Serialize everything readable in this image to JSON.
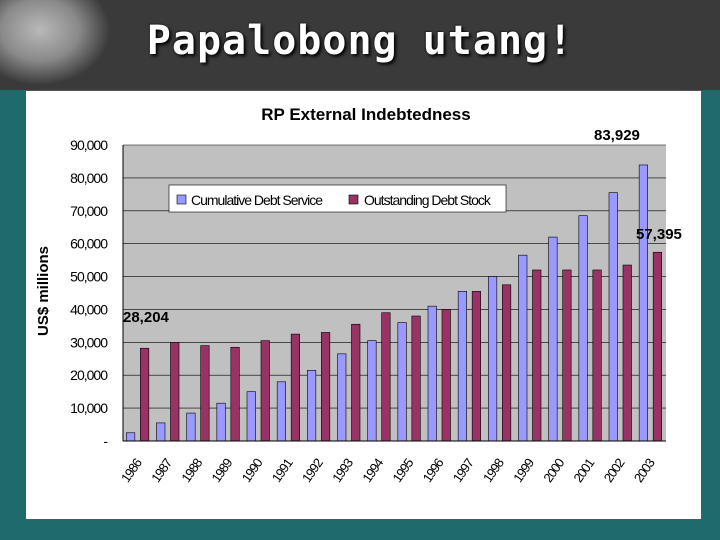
{
  "slide": {
    "title": "Papalobong utang!"
  },
  "chart_data": {
    "type": "bar",
    "title": "RP External Indebtedness",
    "ylabel": "US$ millions",
    "xlabel": "",
    "ylim": [
      0,
      90000
    ],
    "yticks": [
      "-",
      "10,000",
      "20,000",
      "30,000",
      "40,000",
      "50,000",
      "60,000",
      "70,000",
      "80,000",
      "90,000"
    ],
    "categories": [
      "1986",
      "1987",
      "1988",
      "1989",
      "1990",
      "1991",
      "1992",
      "1993",
      "1994",
      "1995",
      "1996",
      "1997",
      "1998",
      "1999",
      "2000",
      "2001",
      "2002",
      "2003"
    ],
    "series": [
      {
        "name": "Cumulative Debt Service",
        "color": "#9999ff",
        "values": [
          2500,
          5500,
          8500,
          11500,
          15000,
          18000,
          21500,
          26500,
          30500,
          36000,
          41000,
          45500,
          50000,
          56500,
          62000,
          68500,
          75500,
          83929
        ]
      },
      {
        "name": "Outstanding Debt Stock",
        "color": "#993366",
        "values": [
          28204,
          30000,
          29000,
          28500,
          30500,
          32500,
          33000,
          35500,
          39000,
          38000,
          40000,
          45500,
          47500,
          52000,
          52000,
          52000,
          53500,
          57395
        ]
      }
    ],
    "annotations": [
      "28,204",
      "83,929",
      "57,395"
    ],
    "grid": true,
    "legend_position": "top-left"
  }
}
